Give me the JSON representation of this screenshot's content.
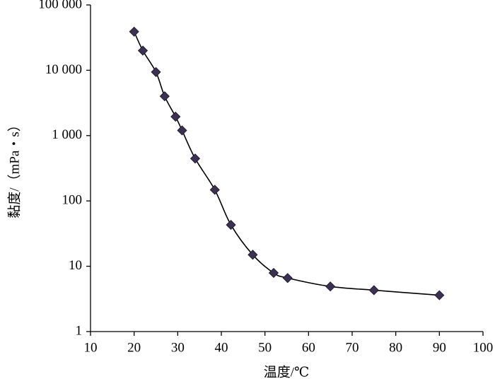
{
  "chart_data": {
    "type": "line",
    "x_label": "温度/℃",
    "y_label": "黏度/（mPa・s）",
    "ylog": true,
    "grid": false,
    "series": [
      {
        "color": "#3b3152",
        "line_color": "#000000",
        "marker": "diamond",
        "x": [
          20,
          22,
          25,
          27,
          29.5,
          31,
          34,
          38.5,
          42.2,
          47.2,
          52,
          55.2,
          65,
          75,
          90
        ],
        "values": [
          39000,
          20000,
          9400,
          4000,
          1950,
          1200,
          445,
          148,
          43,
          15,
          7.9,
          6.6,
          4.9,
          4.3,
          3.6
        ]
      }
    ],
    "xlim": [
      10,
      100
    ],
    "xticks": [
      10,
      20,
      30,
      40,
      50,
      60,
      70,
      80,
      90,
      100
    ],
    "ylim": [
      1,
      100000
    ],
    "yticks": [
      1,
      10,
      {
        "value": 100,
        "label": "100"
      },
      {
        "value": 1000,
        "label": "1 000"
      },
      {
        "value": 10000,
        "label": "10 000"
      },
      {
        "value": 100000,
        "label": "100 000"
      }
    ]
  }
}
